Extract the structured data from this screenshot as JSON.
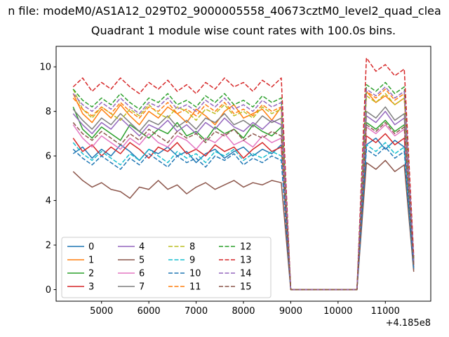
{
  "chart_data": {
    "type": "line",
    "suptitle": "n file: modeM0/AS1A12_029T02_9000005558_40673cztM0_level2_quad_clea",
    "title": "Quadrant 1 module wise count rates with 100.0s bins.",
    "xlabel": "",
    "ylabel": "",
    "x_axis_offset": "+4.185e8",
    "xlim": [
      4040,
      11960
    ],
    "ylim": [
      -0.52,
      10.92
    ],
    "xticks": [
      5000,
      6000,
      7000,
      8000,
      9000,
      10000,
      11000
    ],
    "yticks": [
      0,
      2,
      4,
      6,
      8,
      10
    ],
    "grid": false,
    "legend": {
      "position": "lower left",
      "ncol": 4
    },
    "x": [
      4400,
      4600,
      4800,
      5000,
      5200,
      5400,
      5600,
      5800,
      6000,
      6200,
      6400,
      6600,
      6800,
      7000,
      7200,
      7400,
      7600,
      7800,
      8000,
      8200,
      8400,
      8600,
      8800,
      9000,
      9200,
      9400,
      9600,
      9800,
      10000,
      10200,
      10400,
      10600,
      10800,
      11000,
      11200,
      11400,
      11600
    ],
    "series": [
      {
        "name": "0",
        "color": "#1f77b4",
        "dash": false,
        "values": [
          6.1,
          6.4,
          5.9,
          6.3,
          6.0,
          6.5,
          6.2,
          5.8,
          6.3,
          6.1,
          6.4,
          6.0,
          6.2,
          5.7,
          6.1,
          6.3,
          5.9,
          6.2,
          6.4,
          6.0,
          6.3,
          6.1,
          6.5,
          0,
          0,
          0,
          0,
          0,
          0,
          0,
          0,
          6.5,
          6.8,
          6.3,
          6.7,
          6.4,
          0.9
        ]
      },
      {
        "name": "1",
        "color": "#ff7f0e",
        "dash": false,
        "values": [
          8.8,
          7.9,
          7.5,
          8.1,
          7.7,
          8.3,
          7.8,
          7.4,
          8.0,
          7.7,
          8.2,
          7.9,
          7.5,
          8.1,
          7.8,
          7.4,
          8.0,
          8.3,
          7.7,
          7.9,
          8.1,
          7.6,
          8.2,
          0,
          0,
          0,
          0,
          0,
          0,
          0,
          0,
          8.9,
          8.4,
          8.7,
          8.3,
          8.6,
          1.3
        ]
      },
      {
        "name": "2",
        "color": "#2ca02c",
        "dash": false,
        "values": [
          8.2,
          7.2,
          6.8,
          7.3,
          7.0,
          6.7,
          7.4,
          7.1,
          6.8,
          7.2,
          7.0,
          7.5,
          6.9,
          7.1,
          6.7,
          7.3,
          7.0,
          7.2,
          6.8,
          7.4,
          7.1,
          6.9,
          7.3,
          0,
          0,
          0,
          0,
          0,
          0,
          0,
          0,
          7.5,
          7.2,
          7.6,
          7.1,
          7.4,
          1.1
        ]
      },
      {
        "name": "3",
        "color": "#d62728",
        "dash": false,
        "values": [
          6.8,
          6.2,
          6.5,
          6.0,
          6.4,
          6.1,
          6.6,
          6.3,
          5.9,
          6.4,
          6.2,
          6.6,
          6.1,
          6.3,
          6.0,
          6.5,
          6.2,
          6.4,
          5.9,
          6.3,
          6.6,
          6.2,
          6.4,
          0,
          0,
          0,
          0,
          0,
          0,
          0,
          0,
          6.9,
          6.6,
          7.0,
          6.5,
          6.8,
          1.0
        ]
      },
      {
        "name": "4",
        "color": "#9467bd",
        "dash": false,
        "values": [
          7.9,
          7.4,
          7.0,
          7.5,
          7.2,
          7.7,
          7.3,
          6.9,
          7.4,
          7.2,
          7.6,
          7.1,
          7.4,
          7.0,
          7.5,
          7.2,
          7.7,
          7.3,
          7.1,
          7.5,
          7.2,
          7.6,
          7.4,
          0,
          0,
          0,
          0,
          0,
          0,
          0,
          0,
          7.8,
          7.5,
          8.0,
          7.4,
          7.7,
          1.2
        ]
      },
      {
        "name": "5",
        "color": "#8c564b",
        "dash": false,
        "values": [
          5.3,
          4.9,
          4.6,
          4.8,
          4.5,
          4.4,
          4.1,
          4.6,
          4.5,
          4.9,
          4.5,
          4.7,
          4.3,
          4.6,
          4.8,
          4.5,
          4.7,
          4.9,
          4.6,
          4.8,
          4.7,
          4.9,
          4.8,
          0,
          0,
          0,
          0,
          0,
          0,
          0,
          0,
          5.7,
          5.4,
          5.8,
          5.3,
          5.6,
          0.8
        ]
      },
      {
        "name": "6",
        "color": "#e377c2",
        "dash": false,
        "values": [
          7.4,
          6.8,
          6.4,
          6.9,
          6.6,
          6.3,
          6.8,
          6.5,
          7.0,
          6.6,
          6.4,
          6.9,
          6.7,
          6.3,
          6.8,
          6.6,
          7.0,
          6.5,
          6.7,
          6.4,
          6.9,
          6.6,
          6.8,
          0,
          0,
          0,
          0,
          0,
          0,
          0,
          0,
          7.3,
          7.0,
          7.4,
          6.9,
          7.2,
          1.1
        ]
      },
      {
        "name": "7",
        "color": "#7f7f7f",
        "dash": false,
        "values": [
          8.1,
          7.6,
          7.2,
          7.7,
          7.4,
          7.9,
          7.5,
          7.1,
          7.6,
          7.4,
          7.8,
          7.3,
          7.6,
          7.2,
          7.7,
          7.5,
          7.9,
          7.4,
          7.6,
          7.3,
          7.8,
          7.5,
          7.7,
          0,
          0,
          0,
          0,
          0,
          0,
          0,
          0,
          8.0,
          7.7,
          8.2,
          7.6,
          7.9,
          1.2
        ]
      },
      {
        "name": "8",
        "color": "#bcbd22",
        "dash": true,
        "values": [
          9.0,
          8.1,
          7.7,
          8.2,
          7.9,
          7.6,
          8.1,
          7.8,
          8.3,
          7.9,
          7.7,
          8.2,
          8.0,
          7.6,
          8.1,
          7.9,
          8.3,
          7.8,
          8.0,
          7.7,
          8.2,
          7.9,
          8.1,
          0,
          0,
          0,
          0,
          0,
          0,
          0,
          0,
          8.7,
          8.4,
          8.8,
          8.3,
          8.6,
          1.3
        ]
      },
      {
        "name": "9",
        "color": "#17becf",
        "dash": true,
        "values": [
          6.6,
          6.1,
          5.8,
          6.2,
          5.9,
          5.6,
          6.1,
          5.8,
          6.3,
          6.0,
          5.7,
          6.2,
          5.9,
          6.1,
          5.7,
          6.2,
          6.0,
          6.3,
          5.8,
          6.1,
          5.9,
          6.2,
          6.0,
          0,
          0,
          0,
          0,
          0,
          0,
          0,
          0,
          6.5,
          6.2,
          6.6,
          6.1,
          6.4,
          1.0
        ]
      },
      {
        "name": "10",
        "color": "#1f77b4",
        "dash": true,
        "values": [
          6.3,
          5.9,
          5.6,
          6.0,
          5.7,
          5.4,
          5.9,
          5.6,
          6.1,
          5.8,
          5.5,
          6.0,
          5.7,
          5.9,
          5.5,
          6.0,
          5.8,
          6.1,
          5.6,
          5.9,
          5.7,
          6.0,
          5.8,
          0,
          0,
          0,
          0,
          0,
          0,
          0,
          0,
          6.3,
          6.0,
          6.4,
          5.9,
          6.2,
          0.9
        ]
      },
      {
        "name": "11",
        "color": "#ff7f0e",
        "dash": true,
        "values": [
          8.6,
          8.1,
          7.8,
          8.2,
          7.9,
          8.4,
          8.0,
          7.7,
          8.2,
          8.0,
          8.4,
          7.9,
          8.1,
          7.8,
          8.3,
          8.0,
          8.4,
          7.9,
          8.1,
          7.8,
          8.3,
          8.0,
          8.2,
          0,
          0,
          0,
          0,
          0,
          0,
          0,
          0,
          8.9,
          8.6,
          9.0,
          8.5,
          8.8,
          1.3
        ]
      },
      {
        "name": "12",
        "color": "#2ca02c",
        "dash": true,
        "values": [
          9.0,
          8.5,
          8.2,
          8.6,
          8.3,
          8.8,
          8.4,
          8.1,
          8.6,
          8.4,
          8.8,
          8.3,
          8.5,
          8.2,
          8.7,
          8.4,
          8.8,
          8.3,
          8.5,
          8.2,
          8.7,
          8.4,
          8.6,
          0,
          0,
          0,
          0,
          0,
          0,
          0,
          0,
          9.2,
          8.9,
          9.3,
          8.8,
          9.1,
          1.4
        ]
      },
      {
        "name": "13",
        "color": "#d62728",
        "dash": true,
        "values": [
          9.1,
          9.5,
          8.9,
          9.3,
          9.0,
          9.5,
          9.1,
          8.8,
          9.3,
          9.0,
          9.4,
          8.9,
          9.2,
          8.8,
          9.3,
          9.0,
          9.5,
          9.1,
          9.3,
          8.9,
          9.4,
          9.1,
          9.5,
          0,
          0,
          0,
          0,
          0,
          0,
          0,
          0,
          10.4,
          9.8,
          10.1,
          9.6,
          9.9,
          1.5
        ]
      },
      {
        "name": "14",
        "color": "#9467bd",
        "dash": true,
        "values": [
          8.8,
          8.3,
          8.0,
          8.4,
          8.1,
          8.6,
          8.2,
          7.9,
          8.4,
          8.2,
          8.6,
          8.1,
          8.3,
          8.0,
          8.5,
          8.2,
          8.6,
          8.1,
          8.3,
          8.0,
          8.5,
          8.2,
          8.4,
          0,
          0,
          0,
          0,
          0,
          0,
          0,
          0,
          9.0,
          8.7,
          9.1,
          8.6,
          8.9,
          1.3
        ]
      },
      {
        "name": "15",
        "color": "#8c564b",
        "dash": true,
        "values": [
          7.5,
          7.0,
          6.7,
          7.1,
          6.8,
          6.5,
          7.0,
          6.7,
          7.2,
          6.9,
          6.6,
          7.1,
          6.8,
          7.0,
          6.6,
          7.1,
          6.9,
          7.2,
          6.7,
          7.0,
          6.8,
          7.1,
          6.9,
          0,
          0,
          0,
          0,
          0,
          0,
          0,
          0,
          7.4,
          7.1,
          7.5,
          7.0,
          7.3,
          1.1
        ]
      }
    ]
  }
}
